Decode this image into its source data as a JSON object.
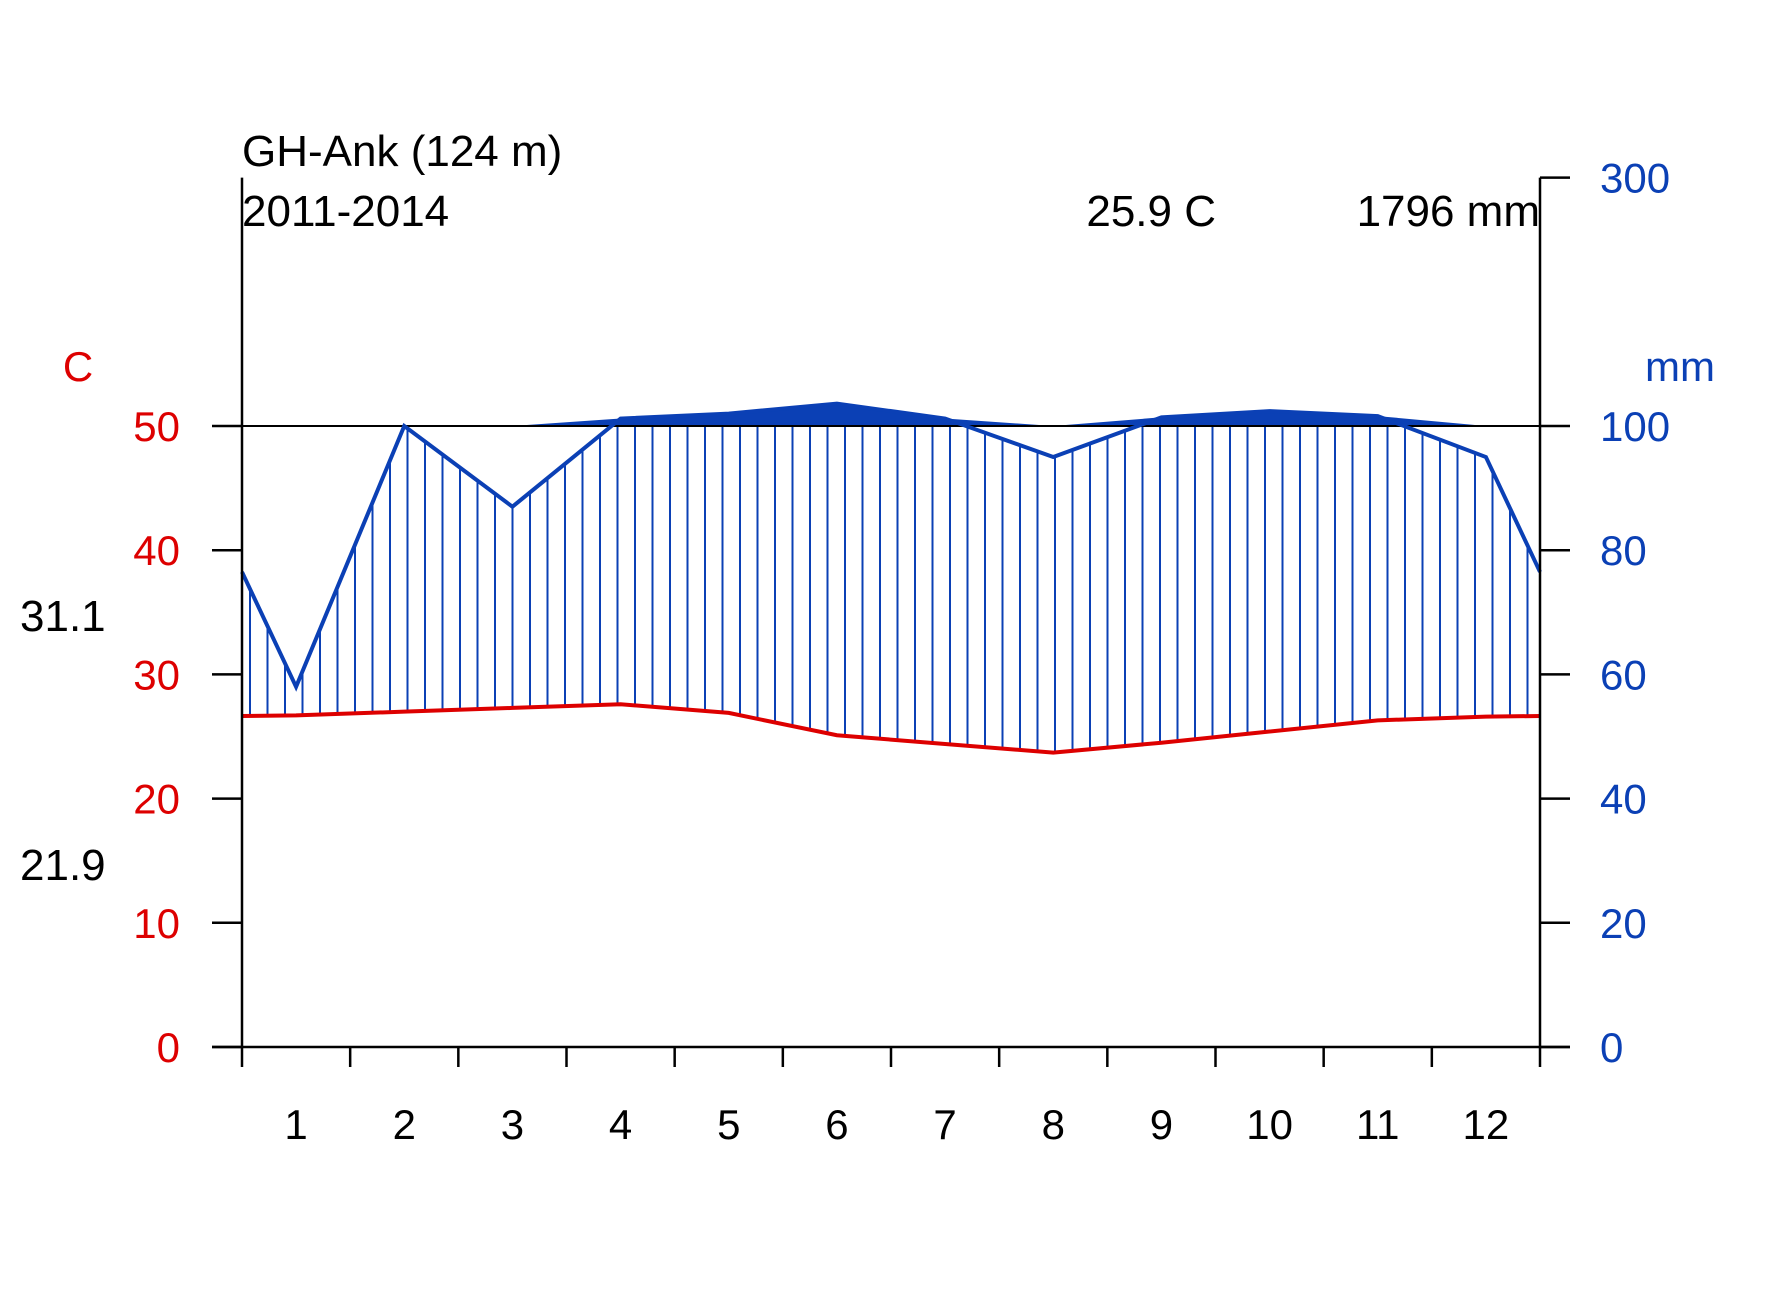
{
  "header": {
    "station": "GH-Ank (124 m)",
    "period": "2011-2014",
    "mean_temp": "25.9 C",
    "annual_precip": "1796 mm"
  },
  "colors": {
    "temperature": "#dd0000",
    "precipitation": "#0b40b5",
    "axis": "#000000"
  },
  "chart_data": {
    "type": "line",
    "subtype": "climate-diagram (Walter-Lieth)",
    "x": [
      "1",
      "2",
      "3",
      "4",
      "5",
      "6",
      "7",
      "8",
      "9",
      "10",
      "11",
      "12"
    ],
    "series": [
      {
        "axis": "left",
        "color": "#dd0000",
        "values": [
          26.7,
          27.0,
          27.3,
          27.6,
          26.9,
          25.1,
          24.4,
          23.7,
          24.5,
          25.4,
          26.3,
          26.6
        ]
      },
      {
        "axis": "right",
        "color": "#0b40b5",
        "values": [
          58,
          100,
          87,
          106,
          110,
          118,
          106,
          95,
          107,
          112,
          108,
          95
        ]
      }
    ],
    "left_axis": {
      "label": "C",
      "ticks": [
        "0",
        "10",
        "20",
        "30",
        "40",
        "50"
      ],
      "ylim": [
        0,
        60
      ]
    },
    "right_axis": {
      "label": "mm",
      "ticks": [
        "0",
        "20",
        "40",
        "60",
        "80",
        "100",
        "300"
      ],
      "scale_note": "0-100 mm at 2 mm per 1 C; above 100 mm compressed 10x"
    },
    "extremes": {
      "max_label": "31.1",
      "min_label": "21.9"
    },
    "grid": false,
    "legend": "none"
  }
}
